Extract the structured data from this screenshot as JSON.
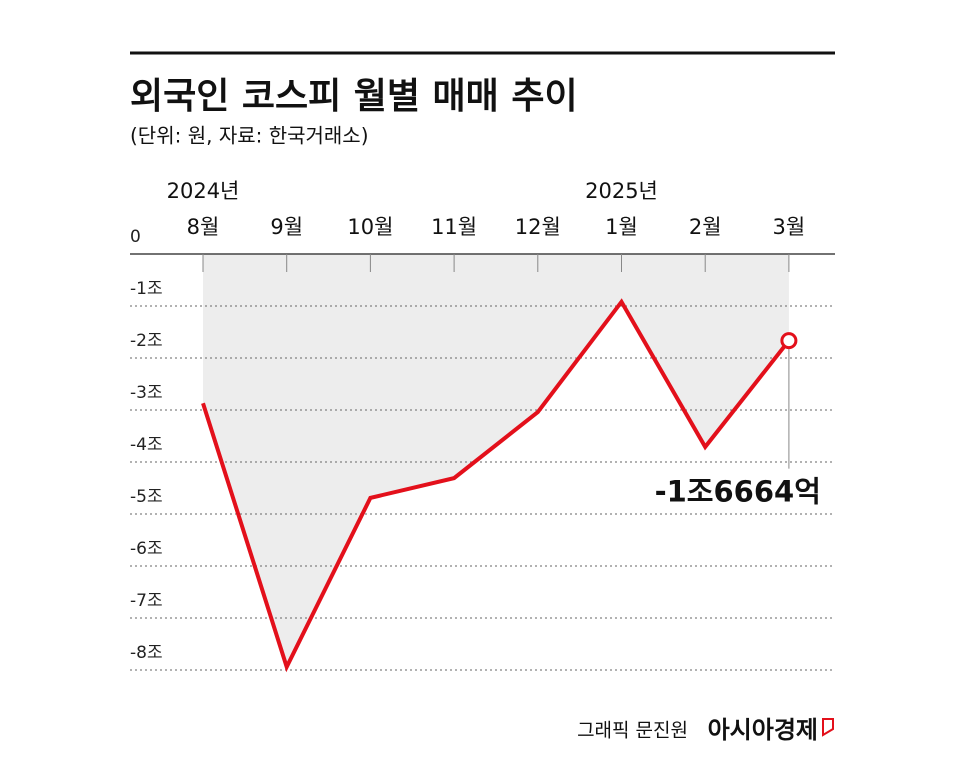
{
  "chart_data": {
    "type": "area-line",
    "title": "외국인 코스피 월별 매매 추이",
    "subtitle": "(단위: 원, 자료: 한국거래소)",
    "categories": [
      "8월",
      "9월",
      "10월",
      "11월",
      "12월",
      "1월",
      "2월",
      "3월"
    ],
    "year_labels": [
      "2024년",
      null,
      null,
      null,
      null,
      "2025년",
      null,
      null
    ],
    "values": [
      -2.87,
      -7.94,
      -4.69,
      -4.31,
      -3.04,
      -0.92,
      -3.71,
      -1.6664
    ],
    "value_labels": [
      null,
      null,
      null,
      null,
      null,
      null,
      null,
      "-1조6664억"
    ],
    "color": "#e3101b",
    "area_color": "#ededed",
    "ylim": [
      -8,
      0
    ],
    "yticks": [
      0,
      {
        "value": -1,
        "label": "-1조"
      },
      {
        "value": -2,
        "label": "-2조"
      },
      {
        "value": -3,
        "label": "-3조"
      },
      {
        "value": -4,
        "label": "-4조"
      },
      {
        "value": -5,
        "label": "-5조"
      },
      {
        "value": -6,
        "label": "-6조"
      },
      {
        "value": -7,
        "label": "-7조"
      },
      {
        "value": -8,
        "label": "-8조"
      }
    ],
    "grid": true,
    "credit": "그래픽 문진원",
    "brand": "아시아경제"
  }
}
